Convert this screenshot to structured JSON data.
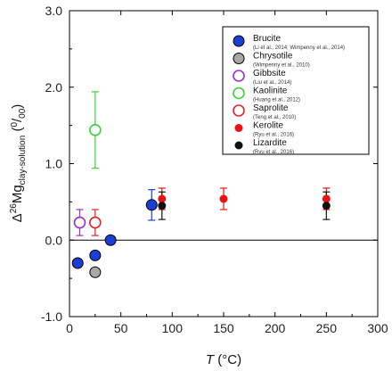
{
  "chart_data": {
    "type": "scatter",
    "xlabel": {
      "symbol": "T",
      "unit": " (°C)"
    },
    "ylabel": {
      "main": "Δ",
      "sup_mass": "26",
      "element": "Mg",
      "sub": "clay-solution",
      "unit_sup": "0",
      "unit_sub": "00"
    },
    "xlim": [
      0,
      300
    ],
    "ylim": [
      -1.0,
      3.0
    ],
    "x_ticks": [
      0,
      50,
      100,
      150,
      200,
      250,
      300
    ],
    "y_ticks": [
      -1.0,
      0.0,
      1.0,
      2.0,
      3.0
    ],
    "x_tick_labels": [
      "0",
      "50",
      "100",
      "150",
      "200",
      "250",
      "300"
    ],
    "y_tick_labels": [
      "-1.0",
      "0.0",
      "1.0",
      "2.0",
      "3.0"
    ],
    "zero_line": true,
    "grid": false,
    "legend_position": "top-right",
    "series": [
      {
        "name": "Brucite",
        "ref": "(Li et al., 2014; Wimpenny et al., 2014)",
        "marker": "filled-circle",
        "color": "#1a3fd6",
        "points": [
          {
            "x": 8,
            "y": -0.3,
            "err": 0
          },
          {
            "x": 25,
            "y": -0.2,
            "err": 0
          },
          {
            "x": 40,
            "y": 0.0,
            "err": 0
          },
          {
            "x": 80,
            "y": 0.46,
            "err": 0.2
          }
        ]
      },
      {
        "name": "Chrysotile",
        "ref": "(Wimpenny et al., 2010)",
        "marker": "filled-circle",
        "color": "#a8a8a8",
        "points": [
          {
            "x": 25,
            "y": -0.42,
            "err": 0
          }
        ]
      },
      {
        "name": "Gibbsite",
        "ref": "(Liu et al., 2014)",
        "marker": "open-circle",
        "color": "#9a2fd0",
        "points": [
          {
            "x": 10,
            "y": 0.23,
            "err": 0.17
          }
        ]
      },
      {
        "name": "Kaolinite",
        "ref": "(Huang et al., 2012)",
        "marker": "open-circle",
        "color": "#36d436",
        "points": [
          {
            "x": 25,
            "y": 1.44,
            "err": 0.5
          }
        ]
      },
      {
        "name": "Saprolite",
        "ref": "(Teng et al., 2010)",
        "marker": "open-circle",
        "color": "#e22222",
        "points": [
          {
            "x": 25,
            "y": 0.23,
            "err": 0.17
          }
        ]
      },
      {
        "name": "Kerolite",
        "ref": "(Ryu et al., 2016)",
        "marker": "small-filled-circle",
        "color": "#ee1111",
        "points": [
          {
            "x": 90,
            "y": 0.54,
            "err": 0.14
          },
          {
            "x": 150,
            "y": 0.54,
            "err": 0.14
          },
          {
            "x": 250,
            "y": 0.54,
            "err": 0.14
          }
        ]
      },
      {
        "name": "Lizardite",
        "ref": "(Ryu et al., 2016)",
        "marker": "small-filled-circle",
        "color": "#111111",
        "points": [
          {
            "x": 90,
            "y": 0.45,
            "err": 0.18
          },
          {
            "x": 250,
            "y": 0.45,
            "err": 0.18
          }
        ]
      }
    ]
  }
}
